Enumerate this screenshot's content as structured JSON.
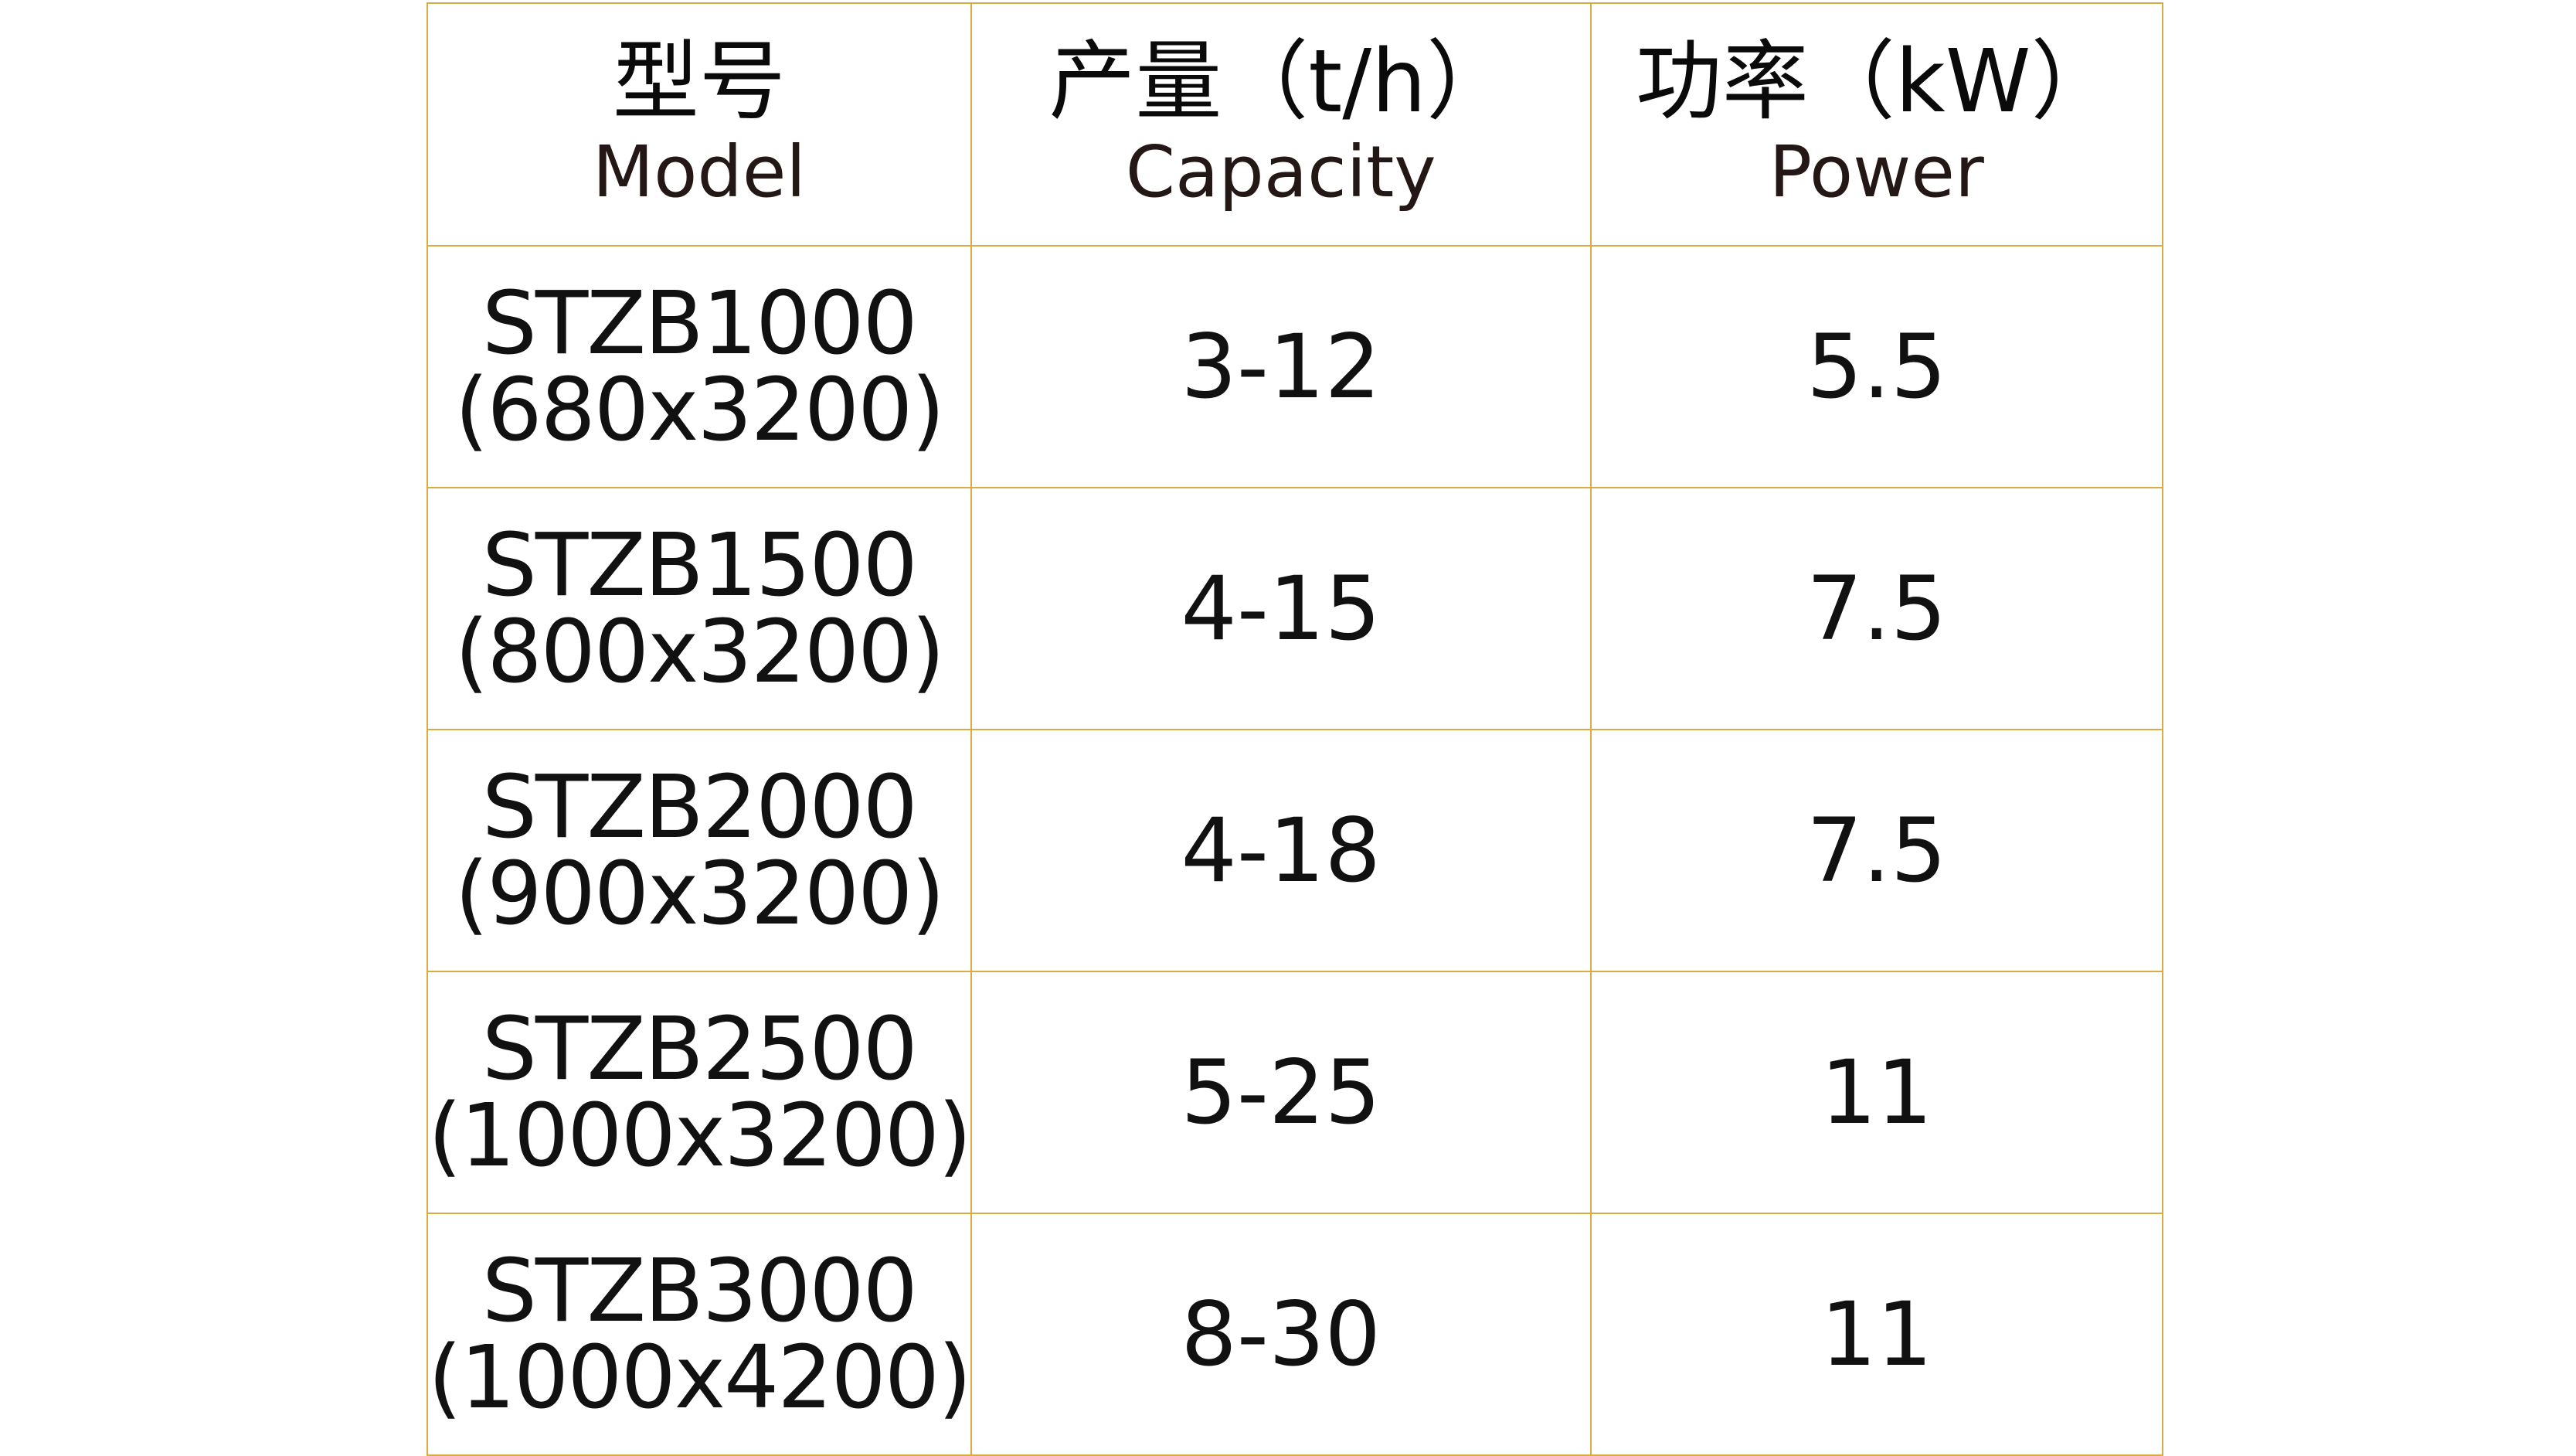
{
  "table": {
    "border_color": "#d9ab45",
    "headers": [
      {
        "zh": "型号",
        "en": "Model"
      },
      {
        "zh": "产量（t/h）",
        "en": "Capacity"
      },
      {
        "zh": "功率（kW）",
        "en": "Power"
      }
    ],
    "rows": [
      {
        "model": "STZB1000",
        "size": "(680x3200)",
        "capacity": "3-12",
        "power": "5.5"
      },
      {
        "model": "STZB1500",
        "size": "(800x3200)",
        "capacity": "4-15",
        "power": "7.5"
      },
      {
        "model": "STZB2000",
        "size": "(900x3200)",
        "capacity": "4-18",
        "power": "7.5"
      },
      {
        "model": "STZB2500",
        "size": "(1000x3200)",
        "capacity": "5-25",
        "power": "11"
      },
      {
        "model": "STZB3000",
        "size": "(1000x4200)",
        "capacity": "8-30",
        "power": "11"
      }
    ]
  }
}
